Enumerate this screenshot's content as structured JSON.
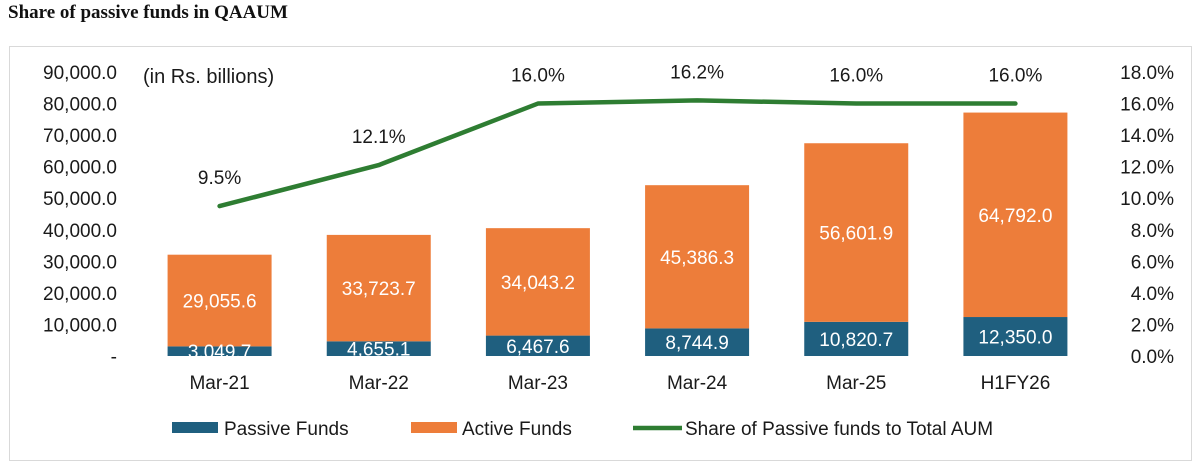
{
  "title": "Share of passive funds in QAAUM",
  "chart_data": {
    "type": "bar",
    "stacked": true,
    "unit_note": "(in Rs. billions)",
    "categories": [
      "Mar-21",
      "Mar-22",
      "Mar-23",
      "Mar-24",
      "Mar-25",
      "H1FY26"
    ],
    "series": [
      {
        "name": "Passive Funds",
        "color": "#1f5f7f",
        "values": [
          3049.7,
          4655.1,
          6467.6,
          8744.9,
          10820.7,
          12350.0
        ],
        "labels": [
          "3,049.7",
          "4,655.1",
          "6,467.6",
          "8,744.9",
          "10,820.7",
          "12,350.0"
        ]
      },
      {
        "name": "Active Funds",
        "color": "#ed7d3a",
        "values": [
          29055.6,
          33723.7,
          34043.2,
          45386.3,
          56601.9,
          64792.0
        ],
        "labels": [
          "29,055.6",
          "33,723.7",
          "34,043.2",
          "45,386.3",
          "56,601.9",
          "64,792.0"
        ]
      }
    ],
    "line_series": {
      "name": "Share of Passive funds to Total AUM",
      "color": "#2e7d32",
      "axis": "right",
      "values": [
        9.5,
        12.1,
        16.0,
        16.2,
        16.0,
        16.0
      ],
      "labels": [
        "9.5%",
        "12.1%",
        "16.0%",
        "16.2%",
        "16.0%",
        "16.0%"
      ]
    },
    "y_left": {
      "min": 0,
      "max": 90000,
      "ticks": [
        "-",
        "10,000.0",
        "20,000.0",
        "30,000.0",
        "40,000.0",
        "50,000.0",
        "60,000.0",
        "70,000.0",
        "80,000.0",
        "90,000.0"
      ]
    },
    "y_right": {
      "min": 0,
      "max": 18,
      "ticks": [
        "0.0%",
        "2.0%",
        "4.0%",
        "6.0%",
        "8.0%",
        "10.0%",
        "12.0%",
        "14.0%",
        "16.0%",
        "18.0%"
      ]
    },
    "legend_position": "bottom",
    "grid": false
  }
}
